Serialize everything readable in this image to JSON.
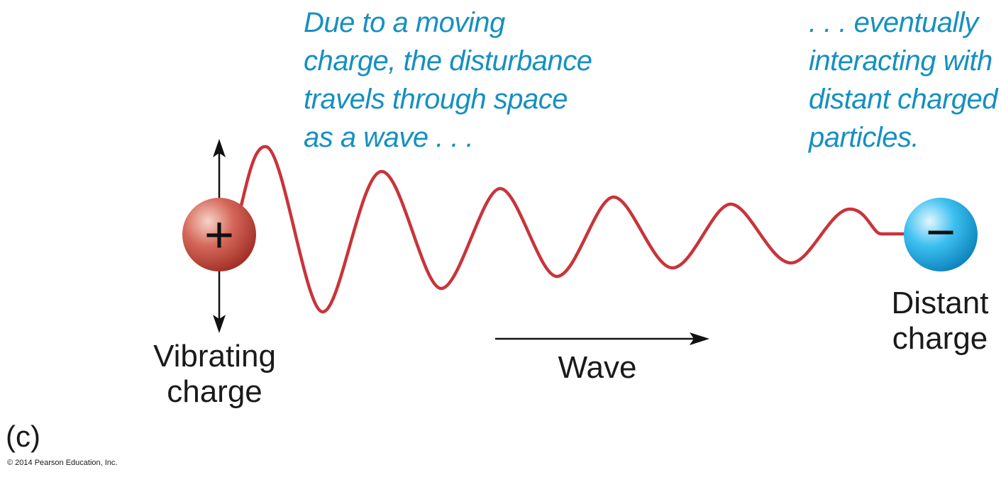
{
  "colors": {
    "wave": "#c8343a",
    "caption": "#1590c0",
    "arrow": "#111111",
    "text": "#1a1a1a",
    "positive_charge": "#c8473c",
    "negative_charge": "#1ea8e0"
  },
  "caption_left": {
    "lines": [
      "Due to a moving",
      "charge, the disturbance",
      "travels through space",
      "as a wave . . ."
    ]
  },
  "caption_right": {
    "lines": [
      ". . . eventually",
      "interacting with",
      "distant charged",
      "particles."
    ]
  },
  "positive_charge": {
    "sign": "+",
    "label_lines": [
      "Vibrating",
      "charge"
    ]
  },
  "negative_charge": {
    "sign": "−",
    "label_lines": [
      "Distant",
      "charge"
    ]
  },
  "wave_arrow": {
    "label": "Wave"
  },
  "panel_label": "(c)",
  "copyright": "© 2014 Pearson Education, Inc."
}
